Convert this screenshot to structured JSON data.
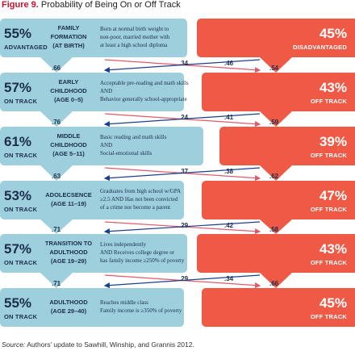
{
  "figure": {
    "label": "Figure 9.",
    "title": "Probability of Being On or Off Track"
  },
  "stages": [
    {
      "left_pct": "55%",
      "left_status": "ADVANTAGED",
      "stage_line1": "FAMILY",
      "stage_line2": "FORMATION",
      "stage_line3": "(AT BIRTH)",
      "desc": [
        "Born at normal birth weight to",
        "non-poor, married mother with",
        "at least a high school diploma"
      ],
      "right_pct": "45%",
      "right_status": "DISADVANTAGED"
    },
    {
      "left_pct": "57%",
      "left_status": "ON TRACK",
      "stage_line1": "EARLY",
      "stage_line2": "CHILDHOOD",
      "stage_line3": "(AGE 0–5)",
      "desc": [
        "Acceptable pre-reading and math skills",
        "AND",
        "Behavior generally school-appropriate"
      ],
      "right_pct": "43%",
      "right_status": "OFF TRACK"
    },
    {
      "left_pct": "61%",
      "left_status": "ON TRACK",
      "stage_line1": "MIDDLE",
      "stage_line2": "CHILDHOOD",
      "stage_line3": "(AGE 5–11)",
      "desc": [
        "Basic reading and math skills",
        "AND",
        "Social-emotional skills"
      ],
      "right_pct": "39%",
      "right_status": "OFF TRACK"
    },
    {
      "left_pct": "53%",
      "left_status": "ON TRACK",
      "stage_line1": "ADOLECSENCE",
      "stage_line2": "(AGE 11–19)",
      "stage_line3": "",
      "desc": [
        "Graduates from high school w/GPA",
        "≥2.5 AND Has not been convicted",
        "of a crime nor become a parent"
      ],
      "right_pct": "47%",
      "right_status": "OFF TRACK"
    },
    {
      "left_pct": "57%",
      "left_status": "ON TRACK",
      "stage_line1": "TRANSITION TO",
      "stage_line2": "ADULTHOOD",
      "stage_line3": "(AGE 19–29)",
      "desc": [
        "Lives independently",
        "AND Receives college degree or",
        "has family income ≥250% of poverty"
      ],
      "right_pct": "43%",
      "right_status": "OFF TRACK"
    },
    {
      "left_pct": "55%",
      "left_status": "ON TRACK",
      "stage_line1": "ADULTHOOD",
      "stage_line2": "(AGE 29–40)",
      "stage_line3": "",
      "desc": [
        "Reaches middle class",
        "Family income is ≥350% of poverty"
      ],
      "right_pct": "45%",
      "right_status": "OFF TRACK"
    }
  ],
  "transitions": [
    {
      "stay_on": ".66",
      "on_to_off": ".34",
      "off_to_on": ".46",
      "stay_off": ".54"
    },
    {
      "stay_on": ".76",
      "on_to_off": ".24",
      "off_to_on": ".41",
      "stay_off": ".59"
    },
    {
      "stay_on": ".63",
      "on_to_off": ".37",
      "off_to_on": ".38",
      "stay_off": ".62"
    },
    {
      "stay_on": ".71",
      "on_to_off": ".29",
      "off_to_on": ".42",
      "stay_off": ".58"
    },
    {
      "stay_on": ".71",
      "on_to_off": ".29",
      "off_to_on": ".34",
      "stay_off": ".66"
    }
  ],
  "source": {
    "label": "Source:",
    "text": "Authors’ update to Sawhill, Winship, and Grannis 2012."
  },
  "colors": {
    "on_track": "#9dcfdc",
    "off_track": "#ef5a46",
    "down_arrow": "#1b3f8f",
    "cross_arrow": "#e05b6a",
    "title_accent": "#c8102e"
  }
}
